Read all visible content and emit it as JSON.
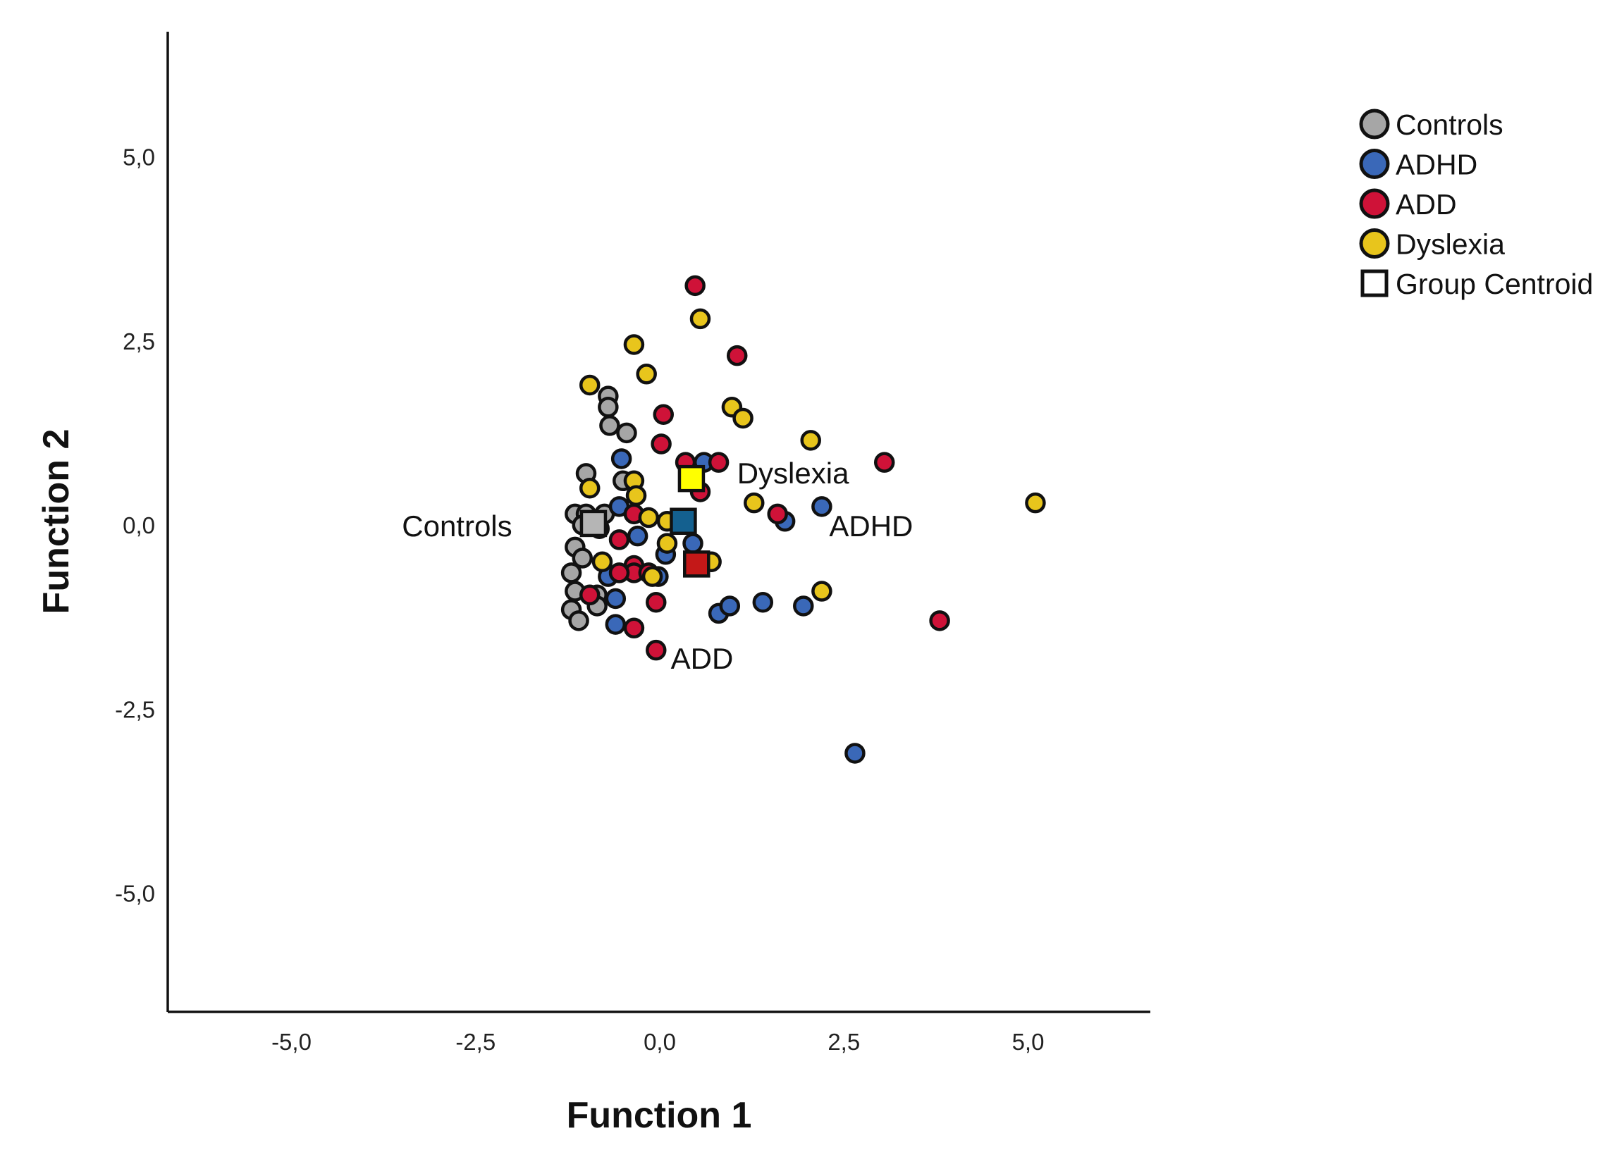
{
  "chart_data": {
    "type": "scatter",
    "xlabel": "Function 1",
    "ylabel": "Function 2",
    "xlim": [
      -6.5,
      6.7
    ],
    "ylim": [
      -6.6,
      6.7
    ],
    "xticks": [
      {
        "value": -5,
        "label": "-5,0"
      },
      {
        "value": -2.5,
        "label": "-2,5"
      },
      {
        "value": 0,
        "label": "0,0"
      },
      {
        "value": 2.5,
        "label": "2,5"
      },
      {
        "value": 5,
        "label": "5,0"
      }
    ],
    "yticks": [
      {
        "value": 5,
        "label": "5,0"
      },
      {
        "value": 2.5,
        "label": "2,5"
      },
      {
        "value": 0,
        "label": "0,0"
      },
      {
        "value": -2.5,
        "label": "-2,5"
      },
      {
        "value": -5,
        "label": "-5,0"
      }
    ],
    "grid": false,
    "legend_position": "top-right",
    "legend": [
      {
        "label": "Controls",
        "marker": "circle",
        "color": "#a6a6a6"
      },
      {
        "label": "ADHD",
        "marker": "circle",
        "color": "#3a68b8"
      },
      {
        "label": "ADD",
        "marker": "circle",
        "color": "#cf1238"
      },
      {
        "label": "Dyslexia",
        "marker": "circle",
        "color": "#e8c51c"
      },
      {
        "label": "Group Centroid",
        "marker": "square",
        "color": "#ffffff"
      }
    ],
    "series": [
      {
        "name": "Controls",
        "color": "#a6a6a6",
        "points": [
          [
            -0.7,
            1.75
          ],
          [
            -0.7,
            1.6
          ],
          [
            -0.68,
            1.35
          ],
          [
            -0.45,
            1.25
          ],
          [
            -1.0,
            0.7
          ],
          [
            -0.5,
            0.6
          ],
          [
            -1.15,
            0.15
          ],
          [
            -1.0,
            0.15
          ],
          [
            -0.75,
            0.15
          ],
          [
            -1.05,
            0.0
          ],
          [
            -1.15,
            -0.3
          ],
          [
            -1.05,
            -0.45
          ],
          [
            -1.2,
            -0.65
          ],
          [
            -1.15,
            -0.9
          ],
          [
            -1.2,
            -1.15
          ],
          [
            -1.1,
            -1.3
          ],
          [
            -0.85,
            -0.95
          ],
          [
            -0.85,
            -1.1
          ]
        ]
      },
      {
        "name": "ADHD",
        "color": "#3a68b8",
        "points": [
          [
            -0.52,
            0.9
          ],
          [
            -0.55,
            0.25
          ],
          [
            -0.3,
            -0.15
          ],
          [
            -0.7,
            -0.7
          ],
          [
            -0.6,
            -1.0
          ],
          [
            -0.6,
            -1.35
          ],
          [
            -0.02,
            -0.7
          ],
          [
            0.08,
            -0.4
          ],
          [
            0.45,
            -0.25
          ],
          [
            0.8,
            -1.2
          ],
          [
            0.95,
            -1.1
          ],
          [
            1.4,
            -1.05
          ],
          [
            1.95,
            -1.1
          ],
          [
            1.7,
            0.05
          ],
          [
            2.2,
            0.25
          ],
          [
            2.65,
            -3.1
          ],
          [
            0.6,
            0.85
          ]
        ]
      },
      {
        "name": "ADD",
        "color": "#cf1238",
        "points": [
          [
            0.48,
            3.25
          ],
          [
            1.05,
            2.3
          ],
          [
            0.05,
            1.5
          ],
          [
            0.02,
            1.1
          ],
          [
            0.8,
            0.85
          ],
          [
            0.35,
            0.85
          ],
          [
            0.55,
            0.45
          ],
          [
            1.6,
            0.15
          ],
          [
            3.05,
            0.85
          ],
          [
            3.8,
            -1.3
          ],
          [
            -0.35,
            0.15
          ],
          [
            -0.55,
            -0.2
          ],
          [
            -0.35,
            -0.55
          ],
          [
            -0.35,
            -0.65
          ],
          [
            -0.55,
            -0.65
          ],
          [
            -0.05,
            -1.05
          ],
          [
            -0.35,
            -1.4
          ],
          [
            -0.05,
            -1.7
          ],
          [
            -0.95,
            -0.95
          ],
          [
            -0.15,
            -0.65
          ]
        ]
      },
      {
        "name": "Dyslexia",
        "color": "#e8c51c",
        "points": [
          [
            0.55,
            2.8
          ],
          [
            -0.35,
            2.45
          ],
          [
            -0.18,
            2.05
          ],
          [
            -0.95,
            1.9
          ],
          [
            0.98,
            1.6
          ],
          [
            1.13,
            1.45
          ],
          [
            2.05,
            1.15
          ],
          [
            -0.35,
            0.6
          ],
          [
            -0.32,
            0.4
          ],
          [
            -0.95,
            0.5
          ],
          [
            -0.15,
            0.1
          ],
          [
            0.1,
            0.05
          ],
          [
            1.28,
            0.3
          ],
          [
            5.1,
            0.3
          ],
          [
            2.2,
            -0.9
          ],
          [
            0.1,
            -0.25
          ],
          [
            -0.78,
            -0.5
          ],
          [
            -0.1,
            -0.7
          ],
          [
            0.7,
            -0.5
          ],
          [
            -0.82,
            -0.05
          ]
        ]
      }
    ],
    "centroids": [
      {
        "name": "Controls",
        "color": "#b5b5b5",
        "x": -0.9,
        "y": 0.02
      },
      {
        "name": "ADHD",
        "color": "#14608f",
        "x": 0.32,
        "y": 0.05
      },
      {
        "name": "ADD",
        "color": "#c41818",
        "x": 0.5,
        "y": -0.53
      },
      {
        "name": "Dyslexia",
        "color": "#ffff00",
        "x": 0.43,
        "y": 0.63
      }
    ],
    "annotations": [
      {
        "text": "Controls",
        "x": -3.5,
        "y": -0.02
      },
      {
        "text": "Dyslexia",
        "x": 1.05,
        "y": 0.7
      },
      {
        "text": "ADHD",
        "x": 2.3,
        "y": -0.02
      },
      {
        "text": "ADD",
        "x": 0.15,
        "y": -1.82
      }
    ]
  }
}
